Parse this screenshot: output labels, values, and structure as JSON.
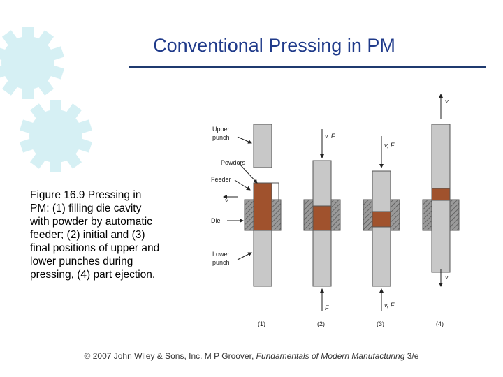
{
  "title": "Conventional Pressing in PM",
  "caption": [
    "Figure 16.9  Pressing in",
    "PM: (1) filling die cavity",
    "with powder by automatic",
    "feeder; (2) initial and (3)",
    "final positions of upper and",
    "lower punches during",
    "pressing, (4) part ejection."
  ],
  "figure": {
    "labels": {
      "upper_punch": [
        "Upper",
        "punch"
      ],
      "powders": "Powders",
      "feeder": "Feeder",
      "die": "Die",
      "lower_punch": [
        "Lower",
        "punch"
      ]
    },
    "arrows": {
      "s1_v": "v",
      "s2_top": "v, F",
      "s2_bottom": "F",
      "s3_top": "v, F",
      "s3_bottom": "v, F",
      "s4_top": "v",
      "s4_bottom": "v"
    },
    "stations": [
      "(1)",
      "(2)",
      "(3)",
      "(4)"
    ]
  },
  "footer": {
    "prefix": "© 2007 John Wiley & Sons, Inc.  M P Groover, ",
    "book": "Fundamentals of Modern Manufacturing",
    "suffix": " 3/e"
  }
}
